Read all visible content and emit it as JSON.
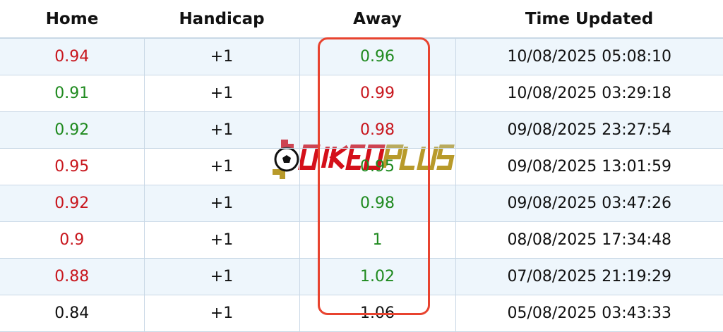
{
  "columns": [
    "Home",
    "Handicap",
    "Away",
    "Time Updated"
  ],
  "colors": {
    "up": "#c8161d",
    "down": "#1f8a1f",
    "neutral": "#111111",
    "highlight": "#e8432f"
  },
  "rows": [
    {
      "home": "0.94",
      "home_color": "red",
      "handicap": "+1",
      "away": "0.96",
      "away_color": "green",
      "time": "10/08/2025 05:08:10"
    },
    {
      "home": "0.91",
      "home_color": "green",
      "handicap": "+1",
      "away": "0.99",
      "away_color": "red",
      "time": "10/08/2025 03:29:18"
    },
    {
      "home": "0.92",
      "home_color": "green",
      "handicap": "+1",
      "away": "0.98",
      "away_color": "red",
      "time": "09/08/2025 23:27:54"
    },
    {
      "home": "0.95",
      "home_color": "red",
      "handicap": "+1",
      "away": "0.95",
      "away_color": "green",
      "time": "09/08/2025 13:01:59"
    },
    {
      "home": "0.92",
      "home_color": "red",
      "handicap": "+1",
      "away": "0.98",
      "away_color": "green",
      "time": "09/08/2025 03:47:26"
    },
    {
      "home": "0.9",
      "home_color": "red",
      "handicap": "+1",
      "away": "1",
      "away_color": "green",
      "time": "08/08/2025 17:34:48"
    },
    {
      "home": "0.88",
      "home_color": "red",
      "handicap": "+1",
      "away": "1.02",
      "away_color": "green",
      "time": "07/08/2025 21:19:29"
    },
    {
      "home": "0.84",
      "home_color": "black",
      "handicap": "+1",
      "away": "1.06",
      "away_color": "black",
      "time": "05/08/2025 03:43:33"
    }
  ],
  "watermark": {
    "text": "SOIKEOPLUS"
  }
}
